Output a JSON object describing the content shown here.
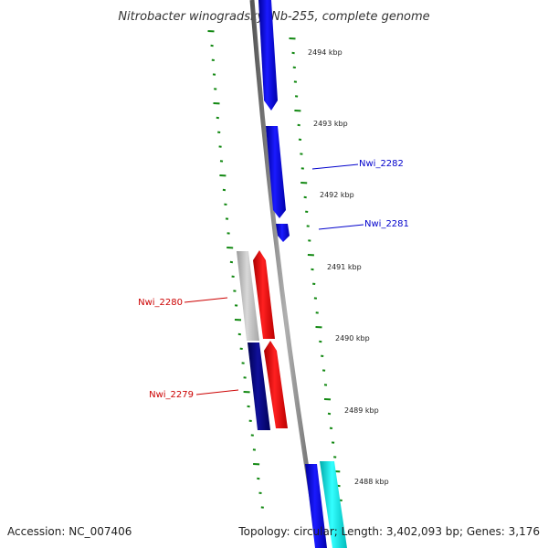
{
  "title": "Nitrobacter winogradskyi Nb-255, complete genome",
  "footer": {
    "accession": "Accession: NC_007406",
    "topology": "Topology: circular; Length: 3,402,093 bp; Genes: 3,176"
  },
  "scale_labels": [
    "2494 kbp",
    "2493 kbp",
    "2492 kbp",
    "2491 kbp",
    "2490 kbp",
    "2489 kbp",
    "2488 kbp"
  ],
  "gene_labels": [
    {
      "text": "Nwi_2282",
      "color": "#0000cc"
    },
    {
      "text": "Nwi_2281",
      "color": "#0000cc"
    },
    {
      "text": "Nwi_2280",
      "color": "#cc0000"
    },
    {
      "text": "Nwi_2279",
      "color": "#cc0000"
    }
  ],
  "colors": {
    "backbone": "#7a7a7a",
    "forward_cds": "#0000ee",
    "reverse_cds": "#ee0000",
    "tick": "#118811",
    "gc_light": "#b8b8b8",
    "gc_dark": "#000080",
    "cyan_feature": "#00dddd"
  }
}
